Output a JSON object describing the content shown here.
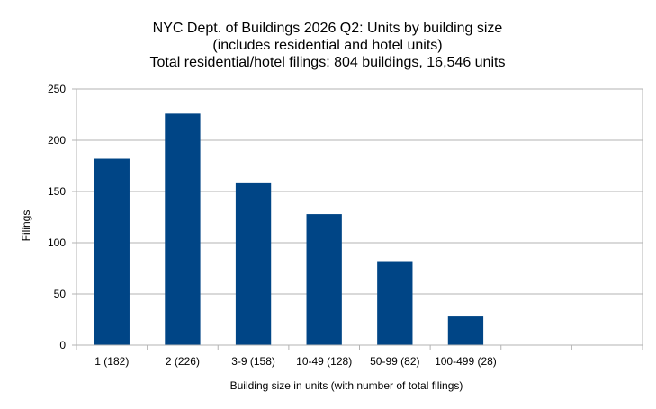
{
  "chart_data": {
    "type": "bar",
    "title_lines": [
      "NYC Dept. of Buildings 2026 Q2: Units by building size",
      "(includes residential and hotel units)",
      "Total residential/hotel filings: 804 buildings, 16,546 units"
    ],
    "xlabel": "Building size in units (with number of total filings)",
    "ylabel": "Filings",
    "categories": [
      "1 (182)",
      "2 (226)",
      "3-9 (158)",
      "10-49 (128)",
      "50-99 (82)",
      "100-499 (28)",
      "",
      ""
    ],
    "values": [
      182,
      226,
      158,
      128,
      82,
      28,
      null,
      null
    ],
    "ylim": [
      0,
      250
    ],
    "yticks": [
      0,
      50,
      100,
      150,
      200,
      250
    ],
    "grid": true,
    "legend": "none",
    "bar_color": "#004586",
    "grid_color": "#b3b3b3",
    "axis_color": "#b3b3b3"
  }
}
